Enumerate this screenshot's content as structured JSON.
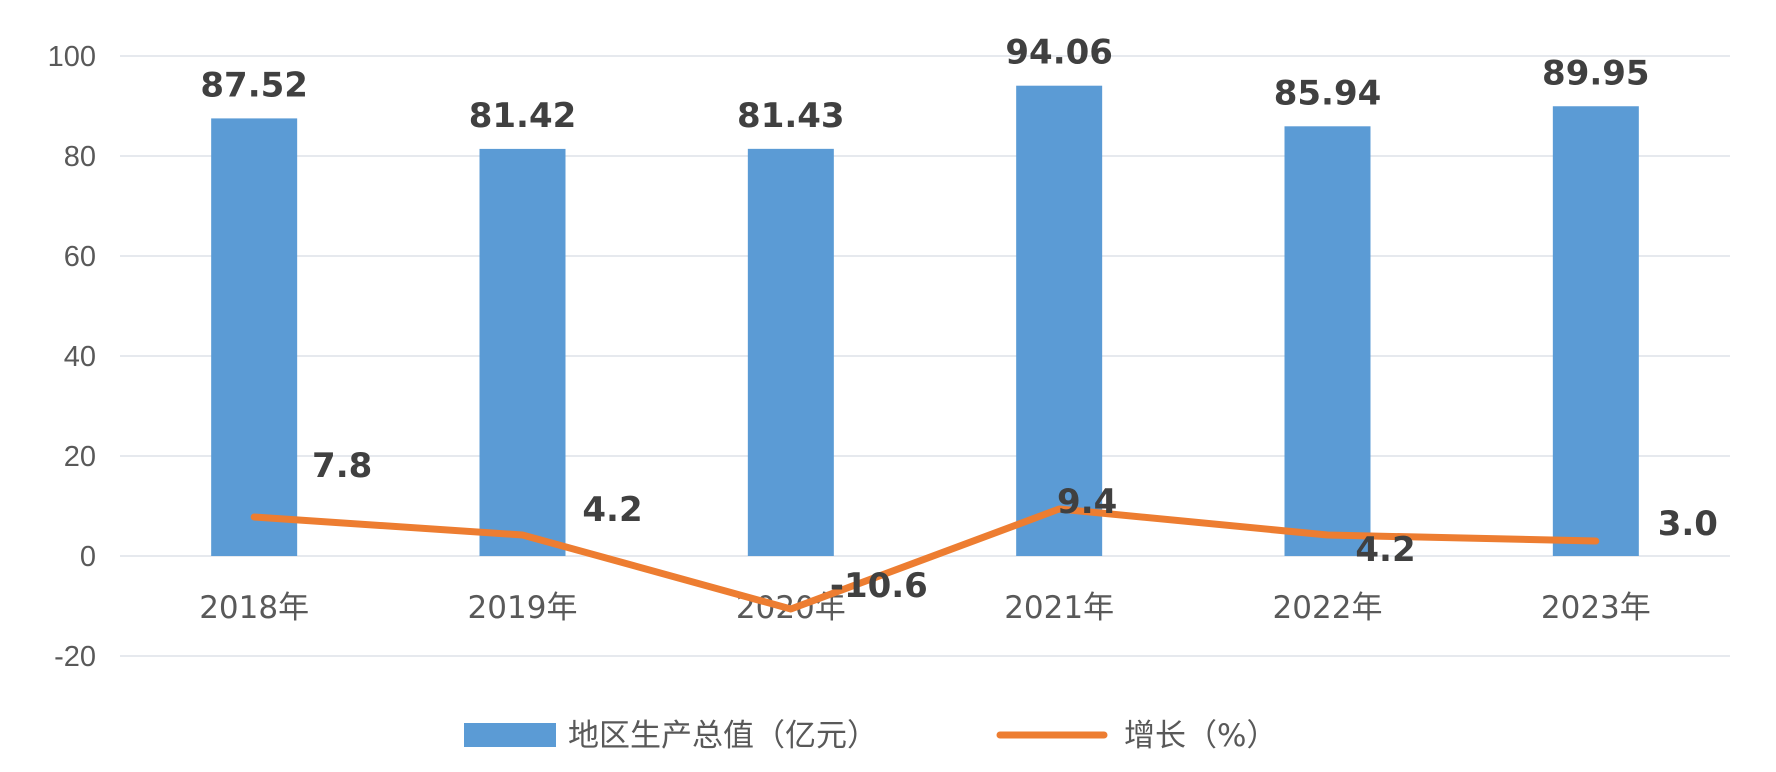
{
  "chart_data": {
    "type": "bar",
    "categories": [
      "2018年",
      "2019年",
      "2020年",
      "2021年",
      "2022年",
      "2023年"
    ],
    "series": [
      {
        "name": "地区生产总值（亿元）",
        "type": "bar",
        "values": [
          87.52,
          81.42,
          81.43,
          94.06,
          85.94,
          89.95
        ],
        "labels": [
          "87.52",
          "81.42",
          "81.43",
          "94.06",
          "85.94",
          "89.95"
        ],
        "color": "#5b9bd5"
      },
      {
        "name": "增长（%）",
        "type": "line",
        "values": [
          7.8,
          4.2,
          -10.6,
          9.4,
          4.2,
          3.0
        ],
        "labels": [
          "7.8",
          "4.2",
          "-10.6",
          "9.4",
          "4.2",
          "3.0"
        ],
        "color": "#ed7d31"
      }
    ],
    "yticks": [
      "-20",
      "0",
      "20",
      "40",
      "60",
      "80",
      "100"
    ],
    "ylim": [
      -20,
      100
    ],
    "grid": true,
    "legend": "bottom"
  }
}
